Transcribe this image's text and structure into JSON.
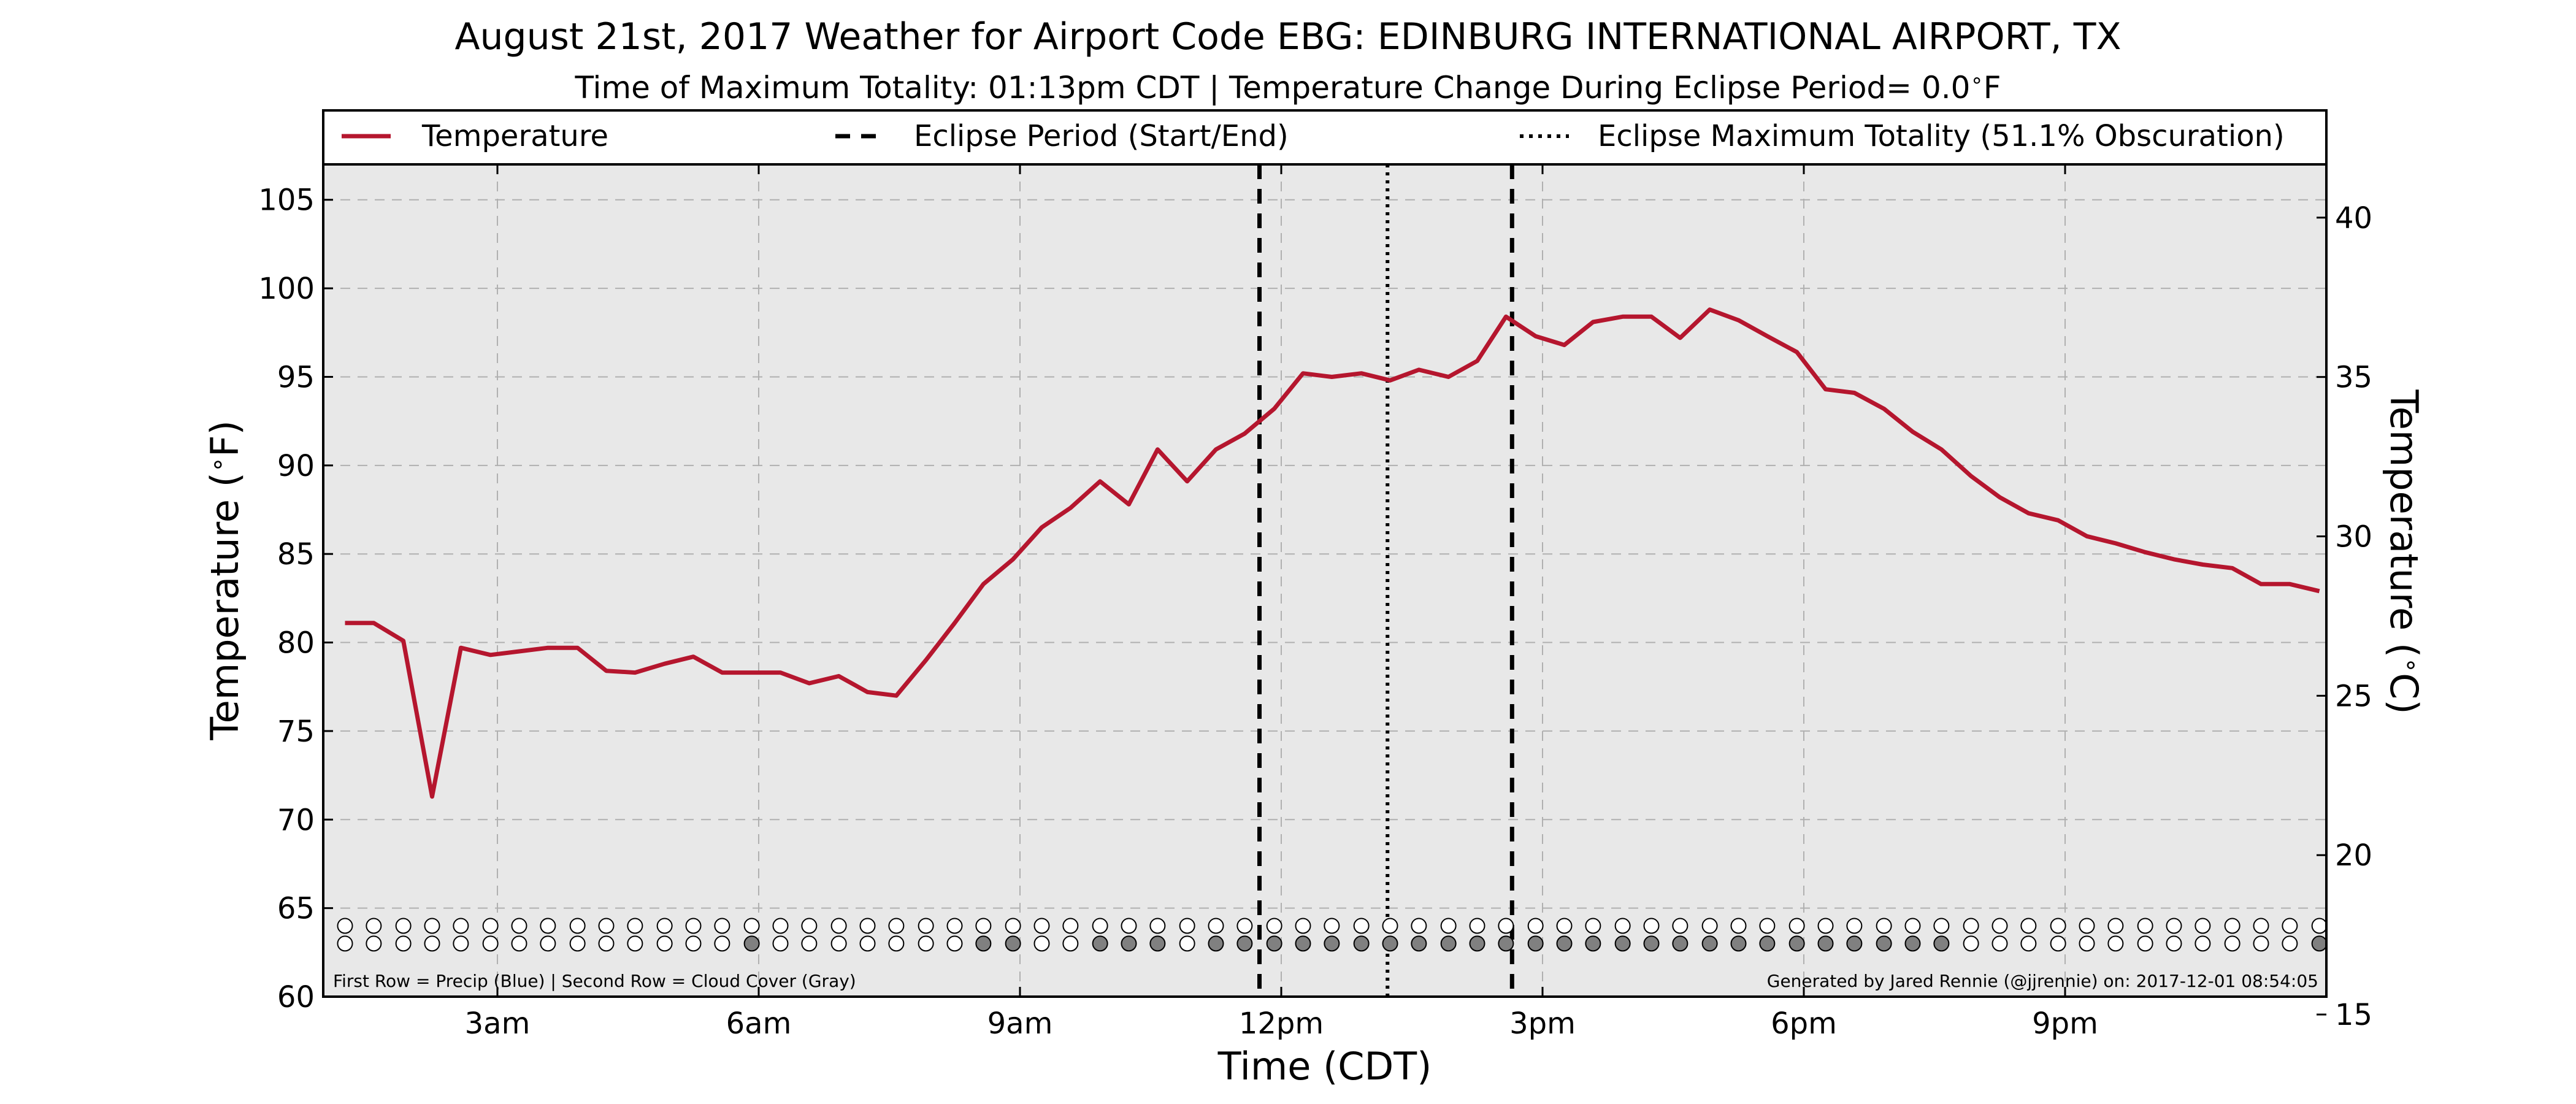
{
  "chart_data": {
    "type": "line",
    "title": "August 21st, 2017 Weather for Airport Code EBG: EDINBURG INTERNATIONAL AIRPORT, TX",
    "subtitle": "Time of Maximum Totality: 01:13pm CDT | Temperature Change During Eclipse Period= 0.0",
    "subtitle_unit": "F",
    "xlabel": "Time (CDT)",
    "ylabel_left": "Temperature (",
    "ylabel_right": "Temperature (",
    "ylabel_left_unit": "F)",
    "ylabel_right_unit": "C)",
    "degree_symbol": "∘",
    "xlim": [
      1.0,
      24.0
    ],
    "ylim": [
      60,
      107
    ],
    "ylim_celsius": [
      15.56,
      41.67
    ],
    "x_ticks": [
      {
        "value": 3,
        "label": "3am"
      },
      {
        "value": 6,
        "label": "6am"
      },
      {
        "value": 9,
        "label": "9am"
      },
      {
        "value": 12,
        "label": "12pm"
      },
      {
        "value": 15,
        "label": "3pm"
      },
      {
        "value": 18,
        "label": "6pm"
      },
      {
        "value": 21,
        "label": "9pm"
      }
    ],
    "y_ticks": [
      60,
      65,
      70,
      75,
      80,
      85,
      90,
      95,
      100,
      105
    ],
    "y_ticks_right": [
      15,
      20,
      25,
      30,
      35,
      40
    ],
    "grid": true,
    "legend": {
      "placement": "top",
      "entries": [
        {
          "label": "Temperature",
          "style": "solid"
        },
        {
          "label": "Eclipse Period (Start/End)",
          "style": "dashed"
        },
        {
          "label": "Eclipse Maximum Totality (51.1% Obscuration)",
          "style": "dotted"
        }
      ]
    },
    "series": [
      {
        "name": "Temperature",
        "color": "#b5162e",
        "x": [
          1.25,
          1.58,
          1.92,
          2.25,
          2.58,
          2.92,
          3.25,
          3.58,
          3.92,
          4.25,
          4.58,
          4.92,
          5.25,
          5.58,
          5.92,
          6.25,
          6.58,
          6.92,
          7.25,
          7.58,
          7.92,
          8.25,
          8.58,
          8.92,
          9.25,
          9.58,
          9.92,
          10.25,
          10.58,
          10.92,
          11.25,
          11.58,
          11.92,
          12.25,
          12.58,
          12.92,
          13.25,
          13.58,
          13.92,
          14.25,
          14.58,
          14.92,
          15.25,
          15.58,
          15.92,
          16.25,
          16.58,
          16.92,
          17.25,
          17.58,
          17.92,
          18.25,
          18.58,
          18.92,
          19.25,
          19.58,
          19.92,
          20.25,
          20.58,
          20.92,
          21.25,
          21.58,
          21.92,
          22.25,
          22.58,
          22.92,
          23.25,
          23.58,
          23.92
        ],
        "values": [
          81.1,
          81.1,
          80.1,
          71.3,
          79.7,
          79.3,
          79.5,
          79.7,
          79.7,
          78.4,
          78.3,
          78.8,
          79.2,
          78.3,
          78.3,
          78.3,
          77.7,
          78.1,
          77.2,
          77.0,
          79.0,
          81.1,
          83.3,
          84.7,
          86.5,
          87.6,
          89.1,
          87.8,
          90.9,
          89.1,
          90.9,
          91.8,
          93.2,
          95.2,
          95.0,
          95.2,
          94.8,
          95.4,
          95.0,
          95.9,
          98.4,
          97.3,
          96.8,
          98.1,
          98.4,
          98.4,
          97.2,
          98.8,
          98.2,
          97.3,
          96.4,
          94.3,
          94.1,
          93.2,
          91.9,
          90.9,
          89.4,
          88.2,
          87.3,
          86.9,
          86.0,
          85.6,
          85.1,
          84.7,
          84.4,
          84.2,
          83.3,
          83.3,
          82.9
        ]
      }
    ],
    "eclipse_start": 11.75,
    "eclipse_end": 14.65,
    "eclipse_max": 13.22,
    "precip_row": {
      "x": [
        1.25,
        1.58,
        1.92,
        2.25,
        2.58,
        2.92,
        3.25,
        3.58,
        3.92,
        4.25,
        4.58,
        4.92,
        5.25,
        5.58,
        5.92,
        6.25,
        6.58,
        6.92,
        7.25,
        7.58,
        7.92,
        8.25,
        8.58,
        8.92,
        9.25,
        9.58,
        9.92,
        10.25,
        10.58,
        10.92,
        11.25,
        11.58,
        11.92,
        12.25,
        12.58,
        12.92,
        13.25,
        13.58,
        13.92,
        14.25,
        14.58,
        14.92,
        15.25,
        15.58,
        15.92,
        16.25,
        16.58,
        16.92,
        17.25,
        17.58,
        17.92,
        18.25,
        18.58,
        18.92,
        19.25,
        19.58,
        19.92,
        20.25,
        20.58,
        20.92,
        21.25,
        21.58,
        21.92,
        22.25,
        22.58,
        22.92,
        23.25,
        23.58,
        23.92
      ],
      "filled": [
        0,
        0,
        0,
        0,
        0,
        0,
        0,
        0,
        0,
        0,
        0,
        0,
        0,
        0,
        0,
        0,
        0,
        0,
        0,
        0,
        0,
        0,
        0,
        0,
        0,
        0,
        0,
        0,
        0,
        0,
        0,
        0,
        0,
        0,
        0,
        0,
        0,
        0,
        0,
        0,
        0,
        0,
        0,
        0,
        0,
        0,
        0,
        0,
        0,
        0,
        0,
        0,
        0,
        0,
        0,
        0,
        0,
        0,
        0,
        0,
        0,
        0,
        0,
        0,
        0,
        0,
        0,
        0,
        0
      ],
      "value": 64
    },
    "cloud_row": {
      "x": [
        1.25,
        1.58,
        1.92,
        2.25,
        2.58,
        2.92,
        3.25,
        3.58,
        3.92,
        4.25,
        4.58,
        4.92,
        5.25,
        5.58,
        5.92,
        6.25,
        6.58,
        6.92,
        7.25,
        7.58,
        7.92,
        8.25,
        8.58,
        8.92,
        9.25,
        9.58,
        9.92,
        10.25,
        10.58,
        10.92,
        11.25,
        11.58,
        11.92,
        12.25,
        12.58,
        12.92,
        13.25,
        13.58,
        13.92,
        14.25,
        14.58,
        14.92,
        15.25,
        15.58,
        15.92,
        16.25,
        16.58,
        16.92,
        17.25,
        17.58,
        17.92,
        18.25,
        18.58,
        18.92,
        19.25,
        19.58,
        19.92,
        20.25,
        20.58,
        20.92,
        21.25,
        21.58,
        21.92,
        22.25,
        22.58,
        22.92,
        23.25,
        23.58,
        23.92
      ],
      "filled": [
        0,
        0,
        0,
        0,
        0,
        0,
        0,
        0,
        0,
        0,
        0,
        0,
        0,
        0,
        1,
        0,
        0,
        0,
        0,
        0,
        0,
        0,
        1,
        1,
        0,
        0,
        1,
        1,
        1,
        0,
        1,
        1,
        1,
        1,
        1,
        1,
        1,
        1,
        1,
        1,
        1,
        1,
        1,
        1,
        1,
        1,
        1,
        1,
        1,
        1,
        1,
        1,
        1,
        1,
        1,
        1,
        0,
        0,
        0,
        0,
        0,
        0,
        0,
        0,
        0,
        0,
        0,
        0,
        1
      ],
      "value": 63
    },
    "annotation_left": "First Row = Precip (Blue) | Second Row = Cloud Cover (Gray)",
    "annotation_right": "Generated by Jared Rennie (@jjrennie) on: 2017-12-01 08:54:05",
    "colors": {
      "temperature": "#b5162e",
      "plot_background": "#e8e8e8",
      "cloud_fill": "#808080",
      "grid": "#b0b0b0"
    }
  }
}
